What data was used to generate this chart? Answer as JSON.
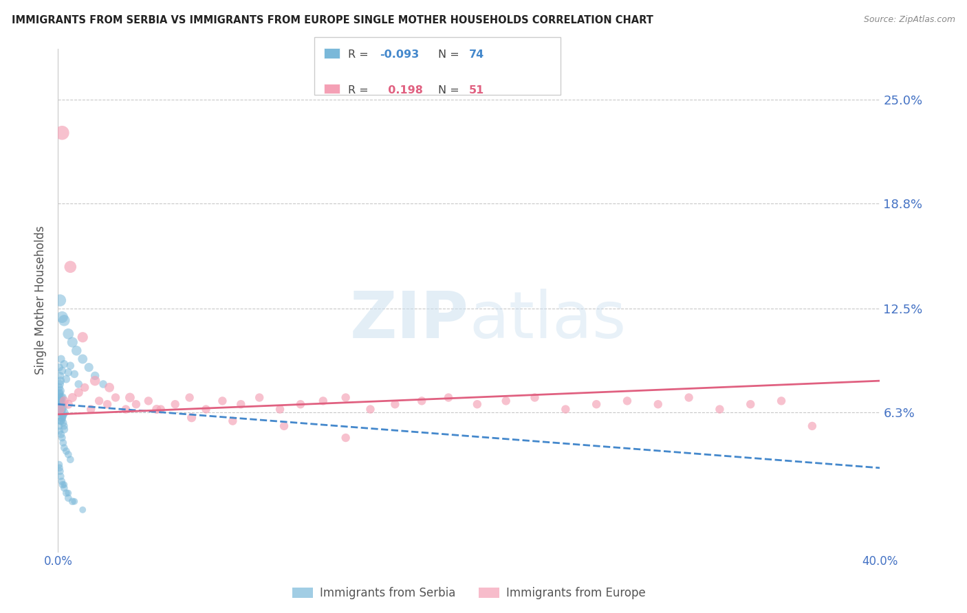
{
  "title": "IMMIGRANTS FROM SERBIA VS IMMIGRANTS FROM EUROPE SINGLE MOTHER HOUSEHOLDS CORRELATION CHART",
  "source": "Source: ZipAtlas.com",
  "ylabel": "Single Mother Households",
  "ytick_labels": [
    "25.0%",
    "18.8%",
    "12.5%",
    "6.3%"
  ],
  "ytick_values": [
    0.25,
    0.188,
    0.125,
    0.063
  ],
  "xlim": [
    0.0,
    0.4
  ],
  "ylim": [
    -0.02,
    0.28
  ],
  "legend_r_serbia": "-0.093",
  "legend_n_serbia": "74",
  "legend_r_europe": "0.198",
  "legend_n_europe": "51",
  "color_serbia": "#7ab8d9",
  "color_europe": "#f4a0b5",
  "color_serbia_line": "#4488cc",
  "color_europe_line": "#e06080",
  "color_axis_labels": "#4472c4",
  "serbia_scatter_x": [
    0.0005,
    0.0008,
    0.001,
    0.0012,
    0.0015,
    0.0018,
    0.002,
    0.0022,
    0.0025,
    0.003,
    0.0005,
    0.0007,
    0.0009,
    0.0011,
    0.0013,
    0.0016,
    0.002,
    0.0023,
    0.0026,
    0.003,
    0.0004,
    0.0006,
    0.0008,
    0.001,
    0.0012,
    0.0014,
    0.0017,
    0.002,
    0.0024,
    0.003,
    0.0005,
    0.0008,
    0.001,
    0.0015,
    0.002,
    0.0025,
    0.003,
    0.004,
    0.005,
    0.006,
    0.0005,
    0.0007,
    0.001,
    0.0013,
    0.0018,
    0.0022,
    0.003,
    0.004,
    0.005,
    0.007,
    0.0006,
    0.001,
    0.0015,
    0.002,
    0.003,
    0.004,
    0.005,
    0.006,
    0.008,
    0.01,
    0.001,
    0.002,
    0.003,
    0.005,
    0.007,
    0.009,
    0.012,
    0.015,
    0.018,
    0.022,
    0.003,
    0.005,
    0.008,
    0.012
  ],
  "serbia_scatter_y": [
    0.065,
    0.068,
    0.063,
    0.07,
    0.058,
    0.072,
    0.06,
    0.066,
    0.062,
    0.055,
    0.073,
    0.069,
    0.075,
    0.067,
    0.071,
    0.064,
    0.059,
    0.061,
    0.057,
    0.053,
    0.078,
    0.074,
    0.08,
    0.076,
    0.082,
    0.07,
    0.068,
    0.072,
    0.066,
    0.063,
    0.055,
    0.052,
    0.058,
    0.05,
    0.048,
    0.045,
    0.042,
    0.04,
    0.038,
    0.035,
    0.032,
    0.03,
    0.028,
    0.025,
    0.022,
    0.02,
    0.018,
    0.015,
    0.012,
    0.01,
    0.09,
    0.085,
    0.095,
    0.088,
    0.092,
    0.083,
    0.087,
    0.091,
    0.086,
    0.08,
    0.13,
    0.12,
    0.118,
    0.11,
    0.105,
    0.1,
    0.095,
    0.09,
    0.085,
    0.08,
    0.02,
    0.015,
    0.01,
    0.005
  ],
  "serbia_scatter_s": [
    60,
    60,
    70,
    60,
    70,
    60,
    70,
    60,
    70,
    60,
    60,
    60,
    60,
    70,
    60,
    70,
    60,
    70,
    60,
    70,
    80,
    80,
    80,
    90,
    80,
    90,
    80,
    90,
    80,
    80,
    60,
    60,
    60,
    60,
    60,
    60,
    60,
    60,
    60,
    60,
    60,
    60,
    60,
    60,
    60,
    60,
    60,
    60,
    60,
    60,
    70,
    70,
    70,
    70,
    70,
    70,
    70,
    70,
    70,
    70,
    160,
    150,
    140,
    130,
    120,
    110,
    100,
    90,
    80,
    70,
    50,
    50,
    50,
    50
  ],
  "europe_scatter_x": [
    0.001,
    0.003,
    0.005,
    0.007,
    0.01,
    0.013,
    0.016,
    0.02,
    0.024,
    0.028,
    0.033,
    0.038,
    0.044,
    0.05,
    0.057,
    0.064,
    0.072,
    0.08,
    0.089,
    0.098,
    0.108,
    0.118,
    0.129,
    0.14,
    0.152,
    0.164,
    0.177,
    0.19,
    0.204,
    0.218,
    0.232,
    0.247,
    0.262,
    0.277,
    0.292,
    0.307,
    0.322,
    0.337,
    0.352,
    0.367,
    0.002,
    0.006,
    0.012,
    0.018,
    0.025,
    0.035,
    0.048,
    0.065,
    0.085,
    0.11,
    0.14
  ],
  "europe_scatter_y": [
    0.065,
    0.07,
    0.068,
    0.072,
    0.075,
    0.078,
    0.065,
    0.07,
    0.068,
    0.072,
    0.065,
    0.068,
    0.07,
    0.065,
    0.068,
    0.072,
    0.065,
    0.07,
    0.068,
    0.072,
    0.065,
    0.068,
    0.07,
    0.072,
    0.065,
    0.068,
    0.07,
    0.072,
    0.068,
    0.07,
    0.072,
    0.065,
    0.068,
    0.07,
    0.068,
    0.072,
    0.065,
    0.068,
    0.07,
    0.055,
    0.23,
    0.15,
    0.108,
    0.082,
    0.078,
    0.072,
    0.065,
    0.06,
    0.058,
    0.055,
    0.048
  ],
  "europe_scatter_s": [
    100,
    90,
    90,
    90,
    90,
    80,
    80,
    80,
    80,
    80,
    80,
    80,
    80,
    80,
    80,
    80,
    80,
    80,
    80,
    80,
    80,
    80,
    80,
    80,
    80,
    80,
    80,
    80,
    80,
    80,
    80,
    80,
    80,
    80,
    80,
    80,
    80,
    80,
    80,
    80,
    220,
    160,
    120,
    110,
    100,
    100,
    90,
    90,
    80,
    80,
    80
  ],
  "serbia_line_x": [
    0.0,
    0.4
  ],
  "serbia_line_y": [
    0.068,
    0.03
  ],
  "europe_line_x": [
    0.0,
    0.4
  ],
  "europe_line_y": [
    0.062,
    0.082
  ]
}
